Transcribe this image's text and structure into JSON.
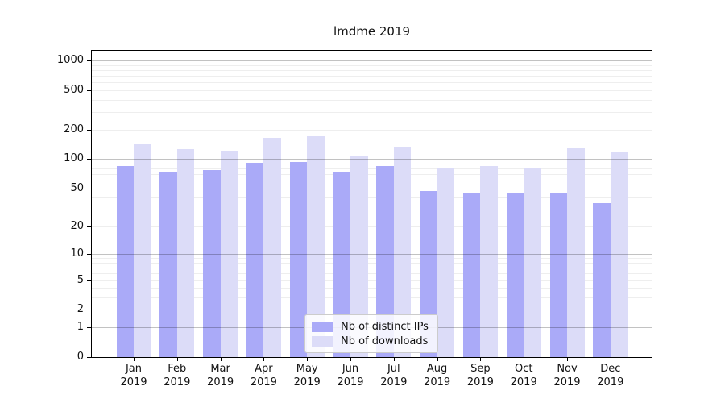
{
  "chart_data": {
    "type": "bar",
    "title": "lmdme 2019",
    "y_scale": "log1p",
    "ylim": [
      0,
      1250
    ],
    "grid": true,
    "legend_position": "bottom-center",
    "y_ticks": [
      1000,
      500,
      200,
      100,
      50,
      20,
      10,
      5,
      2,
      1,
      0
    ],
    "y_major_gridlines": [
      1,
      10,
      100,
      1000
    ],
    "y_minor_gridlines": [
      2,
      3,
      4,
      5,
      6,
      7,
      8,
      9,
      20,
      30,
      40,
      50,
      60,
      70,
      80,
      90,
      200,
      300,
      400,
      500,
      600,
      700,
      800,
      900
    ],
    "categories": [
      "Jan",
      "Feb",
      "Mar",
      "Apr",
      "May",
      "Jun",
      "Jul",
      "Aug",
      "Sep",
      "Oct",
      "Nov",
      "Dec"
    ],
    "year": "2019",
    "series": [
      {
        "name": "Nb of distinct IPs",
        "color": "#aaaaf8",
        "values": [
          84,
          72,
          77,
          92,
          93,
          72,
          84,
          47,
          44,
          44,
          45,
          35
        ]
      },
      {
        "name": "Nb of downloads",
        "color": "#dcdcf8",
        "values": [
          140,
          127,
          122,
          163,
          171,
          106,
          134,
          81,
          85,
          80,
          129,
          116
        ]
      }
    ]
  },
  "colors": {
    "axis": "#000000",
    "major_grid": "rgba(0,0,0,0.24)",
    "minor_grid": "rgba(0,0,0,0.065)",
    "background": "#ffffff",
    "text": "#111111",
    "legend_border": "#cccccc"
  }
}
